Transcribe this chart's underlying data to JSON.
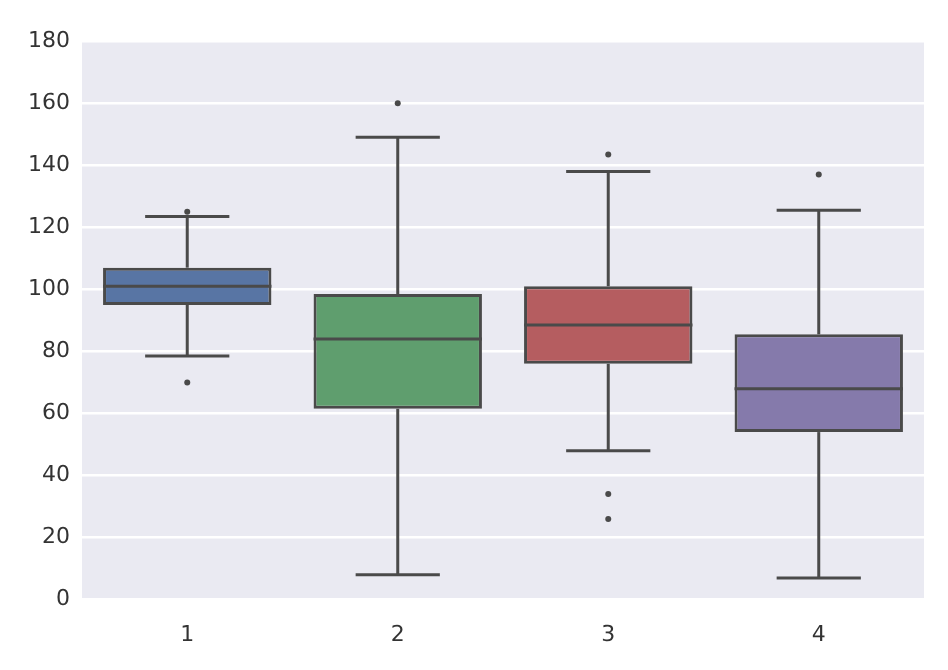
{
  "chart_data": {
    "type": "box",
    "categories": [
      "1",
      "2",
      "3",
      "4"
    ],
    "boxes": [
      {
        "low": 78.5,
        "q1": 95,
        "median": 101,
        "q3": 107,
        "high": 123.5,
        "outliers": [
          70,
          125
        ]
      },
      {
        "low": 8,
        "q1": 61.5,
        "median": 84,
        "q3": 98.5,
        "high": 149,
        "outliers": [
          160
        ]
      },
      {
        "low": 48,
        "q1": 76,
        "median": 88.5,
        "q3": 101,
        "high": 138,
        "outliers": [
          143.5,
          34,
          26
        ]
      },
      {
        "low": 7,
        "q1": 54,
        "median": 68,
        "q3": 85.5,
        "high": 125.5,
        "outliers": [
          137
        ]
      }
    ],
    "colors": [
      "#5875a4",
      "#5f9e6e",
      "#b55d60",
      "#857aab"
    ],
    "ylim": [
      0,
      180
    ],
    "yticks": [
      0,
      20,
      40,
      60,
      80,
      100,
      120,
      140,
      160,
      180
    ],
    "grid": "y"
  }
}
